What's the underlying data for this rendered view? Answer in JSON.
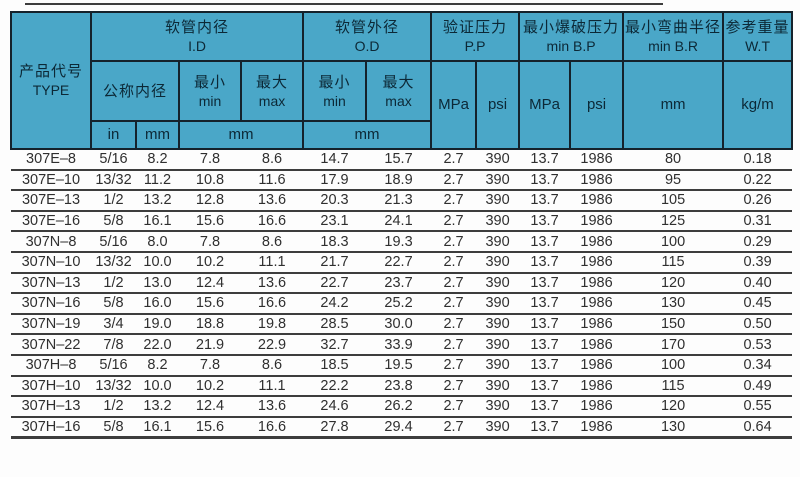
{
  "colors": {
    "header_bg": "#4aa7c8",
    "header_text": "#0c2836",
    "grid_line": "#15222b",
    "row_line": "#3d3d3d",
    "body_text": "#2f2f2f"
  },
  "table": {
    "header": {
      "type": {
        "zh": "产品代号",
        "en": "TYPE"
      },
      "id_group": {
        "zh": "软管内径",
        "en": "I.D"
      },
      "od_group": {
        "zh": "软管外径",
        "en": "O.D"
      },
      "pp_group": {
        "zh": "验证压力",
        "en": "P.P"
      },
      "bp_group": {
        "zh": "最小爆破压力",
        "en": "min B.P"
      },
      "br_group": {
        "zh": "最小弯曲半径",
        "en": "min B.R"
      },
      "wt_group": {
        "zh": "参考重量",
        "en": "W.T"
      },
      "nominal_id": "公称内径",
      "min": {
        "zh": "最小",
        "en": "min"
      },
      "max": {
        "zh": "最大",
        "en": "max"
      },
      "unit_in": "in",
      "unit_mm": "mm",
      "unit_mpa": "MPa",
      "unit_psi": "psi",
      "unit_kgm": "kg/m"
    },
    "rows": [
      [
        "307E–8",
        "5/16",
        "8.2",
        "7.8",
        "8.6",
        "14.7",
        "15.7",
        "2.7",
        "390",
        "13.7",
        "1986",
        "80",
        "0.18"
      ],
      [
        "307E–10",
        "13/32",
        "11.2",
        "10.8",
        "11.6",
        "17.9",
        "18.9",
        "2.7",
        "390",
        "13.7",
        "1986",
        "95",
        "0.22"
      ],
      [
        "307E–13",
        "1/2",
        "13.2",
        "12.8",
        "13.6",
        "20.3",
        "21.3",
        "2.7",
        "390",
        "13.7",
        "1986",
        "105",
        "0.26"
      ],
      [
        "307E–16",
        "5/8",
        "16.1",
        "15.6",
        "16.6",
        "23.1",
        "24.1",
        "2.7",
        "390",
        "13.7",
        "1986",
        "125",
        "0.31"
      ],
      [
        "307N–8",
        "5/16",
        "8.0",
        "7.8",
        "8.6",
        "18.3",
        "19.3",
        "2.7",
        "390",
        "13.7",
        "1986",
        "100",
        "0.29"
      ],
      [
        "307N–10",
        "13/32",
        "10.0",
        "10.2",
        "11.1",
        "21.7",
        "22.7",
        "2.7",
        "390",
        "13.7",
        "1986",
        "115",
        "0.39"
      ],
      [
        "307N–13",
        "1/2",
        "13.0",
        "12.4",
        "13.6",
        "22.7",
        "23.7",
        "2.7",
        "390",
        "13.7",
        "1986",
        "120",
        "0.40"
      ],
      [
        "307N–16",
        "5/8",
        "16.0",
        "15.6",
        "16.6",
        "24.2",
        "25.2",
        "2.7",
        "390",
        "13.7",
        "1986",
        "130",
        "0.45"
      ],
      [
        "307N–19",
        "3/4",
        "19.0",
        "18.8",
        "19.8",
        "28.5",
        "30.0",
        "2.7",
        "390",
        "13.7",
        "1986",
        "150",
        "0.50"
      ],
      [
        "307N–22",
        "7/8",
        "22.0",
        "21.9",
        "22.9",
        "32.7",
        "33.9",
        "2.7",
        "390",
        "13.7",
        "1986",
        "170",
        "0.53"
      ],
      [
        "307H–8",
        "5/16",
        "8.2",
        "7.8",
        "8.6",
        "18.5",
        "19.5",
        "2.7",
        "390",
        "13.7",
        "1986",
        "100",
        "0.34"
      ],
      [
        "307H–10",
        "13/32",
        "10.0",
        "10.2",
        "11.1",
        "22.2",
        "23.8",
        "2.7",
        "390",
        "13.7",
        "1986",
        "115",
        "0.49"
      ],
      [
        "307H–13",
        "1/2",
        "13.2",
        "12.4",
        "13.6",
        "24.6",
        "26.2",
        "2.7",
        "390",
        "13.7",
        "1986",
        "120",
        "0.55"
      ],
      [
        "307H–16",
        "5/8",
        "16.1",
        "15.6",
        "16.6",
        "27.8",
        "29.4",
        "2.7",
        "390",
        "13.7",
        "1986",
        "130",
        "0.64"
      ]
    ]
  }
}
